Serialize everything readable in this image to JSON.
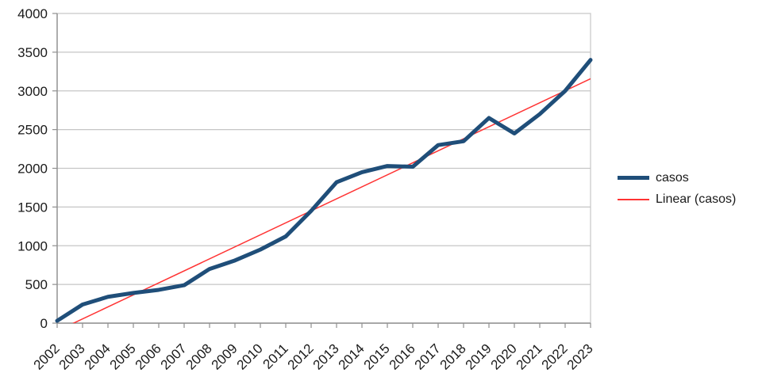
{
  "chart_data": {
    "type": "line",
    "title": "",
    "xlabel": "",
    "ylabel": "",
    "categories": [
      "2002",
      "2003",
      "2004",
      "2005",
      "2006",
      "2007",
      "2008",
      "2009",
      "2010",
      "2011",
      "2012",
      "2013",
      "2014",
      "2015",
      "2016",
      "2017",
      "2018",
      "2019",
      "2020",
      "2021",
      "2022",
      "2023"
    ],
    "series": [
      {
        "name": "casos",
        "color": "#1f4e79",
        "stroke_width": 5,
        "values": [
          30,
          240,
          340,
          390,
          430,
          490,
          700,
          810,
          950,
          1120,
          1450,
          1820,
          1950,
          2030,
          2020,
          2300,
          2350,
          2650,
          2450,
          2700,
          3000,
          3400
        ]
      }
    ],
    "trendline": {
      "name": "Linear (casos)",
      "based_on": "casos",
      "type": "linear-regression",
      "color": "#ff3333",
      "stroke_width": 1.5
    },
    "ylim": [
      0,
      4000
    ],
    "y_ticks": [
      0,
      500,
      1000,
      1500,
      2000,
      2500,
      3000,
      3500,
      4000
    ],
    "x_label_rotation": -45,
    "grid": "horizontal-major",
    "legend_position": "right",
    "colors": {
      "axis": "#8f8f8f",
      "grid": "#c6c6c6",
      "text": "#1a1a1a",
      "background": "#ffffff"
    }
  }
}
